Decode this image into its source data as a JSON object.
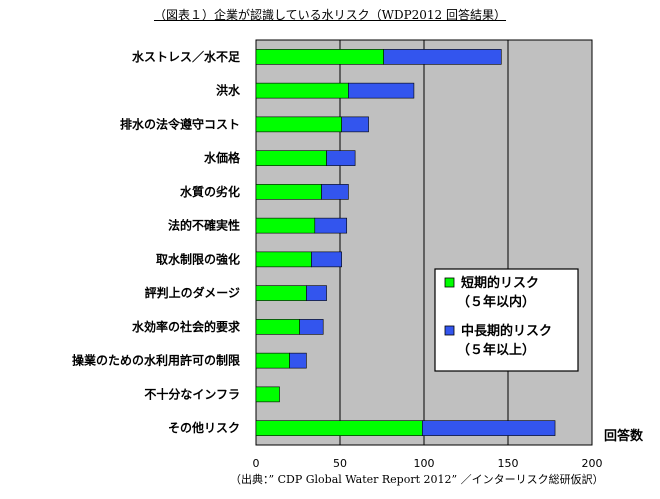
{
  "title": "（図表１）企業が認識している水リスク（WDP2012 回答結果）",
  "source": "（出典：” CDP Global Water Report 2012” ／インターリスク総研仮訳）",
  "colors": {
    "short_term": "#00ff00",
    "long_term": "#3355ee",
    "plot_bg": "#c0c0c0",
    "gridline": "#000000"
  },
  "chart_data": {
    "type": "bar",
    "orientation": "horizontal",
    "stacked": true,
    "categories": [
      "水ストレス／水不足",
      "洪水",
      "排水の法令遵守コスト",
      "水価格",
      "水質の劣化",
      "法的不確実性",
      "取水制限の強化",
      "評判上のダメージ",
      "水効率の社会的要求",
      "操業のための水利用許可の制限",
      "不十分なインフラ",
      "その他リスク"
    ],
    "series": [
      {
        "name": "短期的リスク（５年以内）",
        "values": [
          76,
          55,
          51,
          42,
          39,
          35,
          33,
          30,
          26,
          20,
          14,
          99
        ]
      },
      {
        "name": "中長期的リスク（５年以上）",
        "values": [
          70,
          39,
          16,
          17,
          16,
          19,
          18,
          12,
          14,
          10,
          0,
          79
        ]
      }
    ],
    "legend": [
      {
        "line1": "短期的リスク",
        "line2": "（５年以内）"
      },
      {
        "line1": "中長期的リスク",
        "line2": "（５年以上）"
      }
    ],
    "xlabel": "回答数",
    "ylabel": "",
    "xlim": [
      0,
      200
    ],
    "xticks": [
      0,
      50,
      100,
      150,
      200
    ],
    "grid": true,
    "legend_placement": "center-right"
  }
}
